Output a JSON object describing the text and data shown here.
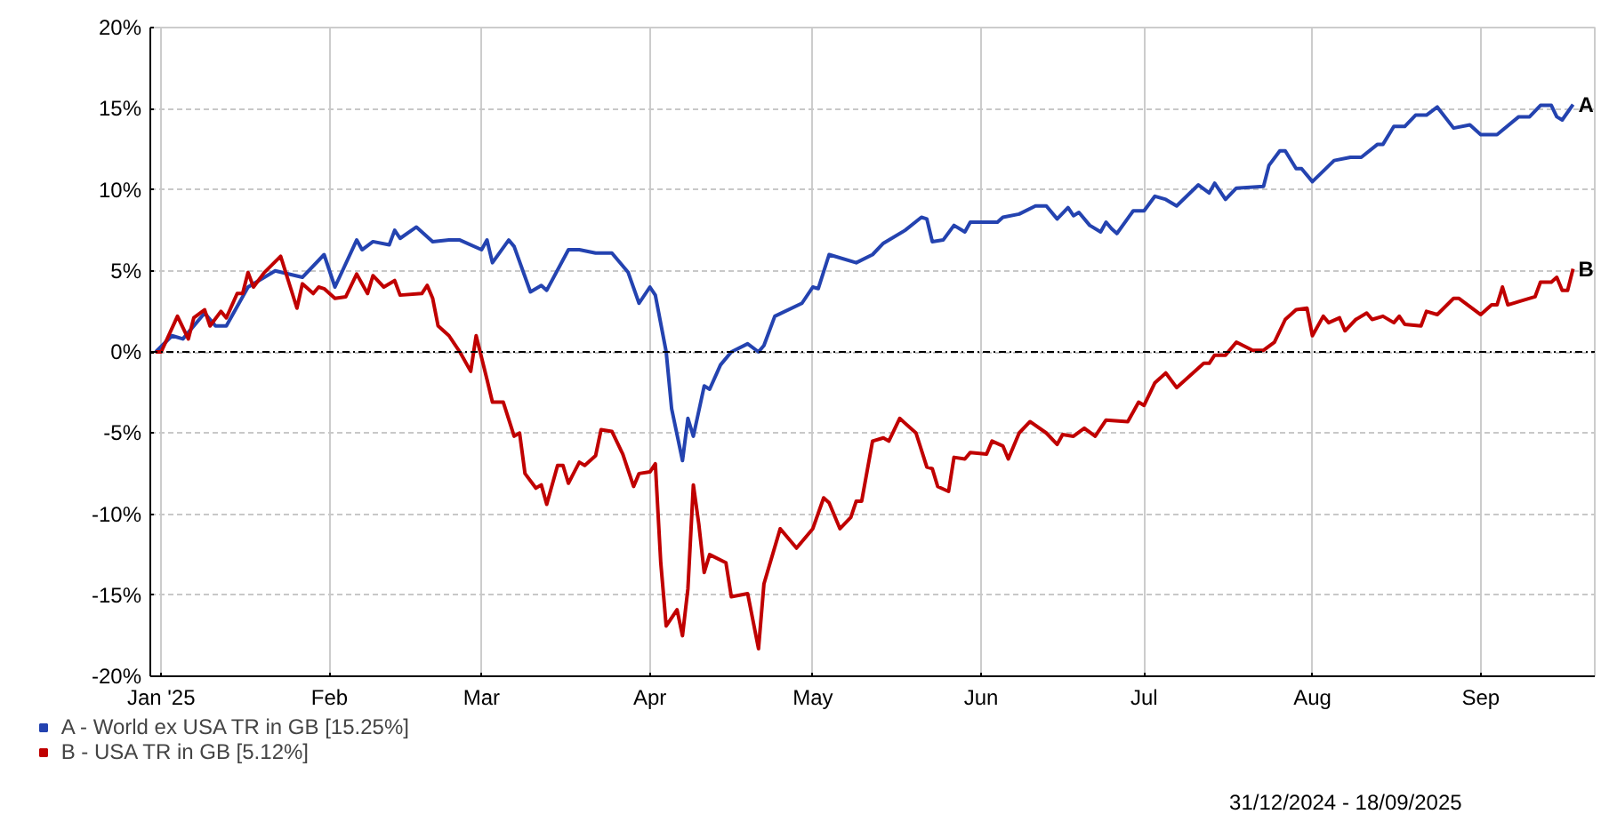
{
  "chart_data": {
    "type": "line",
    "xlim": [
      "2024-12-30",
      "2025-09-22"
    ],
    "xticks": [
      {
        "value": "2025-01-01",
        "label": "Jan '25"
      },
      {
        "value": "2025-02-01",
        "label": "Feb"
      },
      {
        "value": "2025-03-01",
        "label": "Mar"
      },
      {
        "value": "2025-04-01",
        "label": "Apr"
      },
      {
        "value": "2025-05-01",
        "label": "May"
      },
      {
        "value": "2025-06-01",
        "label": "Jun"
      },
      {
        "value": "2025-07-01",
        "label": "Jul"
      },
      {
        "value": "2025-08-01",
        "label": "Aug"
      },
      {
        "value": "2025-09-01",
        "label": "Sep"
      }
    ],
    "ylim": [
      -20,
      20
    ],
    "yticks": [
      {
        "value": -20,
        "label": "-20%"
      },
      {
        "value": -15,
        "label": "-15%"
      },
      {
        "value": -10,
        "label": "-10%"
      },
      {
        "value": -5,
        "label": "-5%"
      },
      {
        "value": 0,
        "label": "0%"
      },
      {
        "value": 5,
        "label": "5%"
      },
      {
        "value": 10,
        "label": "10%"
      },
      {
        "value": 15,
        "label": "15%"
      },
      {
        "value": 20,
        "label": "20%"
      }
    ],
    "grid": true,
    "legend": "bottom",
    "marker": "none",
    "line_style": "solid",
    "ref_lines": [
      {
        "axis": "y",
        "value": 0,
        "label": null,
        "color": "#000000",
        "line_style": "dashed"
      }
    ],
    "annotations": [
      {
        "text": "A",
        "x": "2025-09-18",
        "y": 15.25
      },
      {
        "text": "B",
        "x": "2025-09-18",
        "y": 5.12
      },
      "31/12/2024 - 18/09/2025"
    ],
    "series": [
      {
        "name": "A - World ex USA TR in GB [15.25%]",
        "color": "#2443b0",
        "x": [
          "2024-12-31",
          "2025-01-03",
          "2025-01-05",
          "2025-01-09",
          "2025-01-11",
          "2025-01-13",
          "2025-01-17",
          "2025-01-22",
          "2025-01-27",
          "2025-01-31",
          "2025-02-02",
          "2025-02-06",
          "2025-02-07",
          "2025-02-09",
          "2025-02-12",
          "2025-02-13",
          "2025-02-14",
          "2025-02-17",
          "2025-02-20",
          "2025-02-23",
          "2025-02-25",
          "2025-03-01",
          "2025-03-02",
          "2025-03-03",
          "2025-03-06",
          "2025-03-07",
          "2025-03-10",
          "2025-03-12",
          "2025-03-13",
          "2025-03-17",
          "2025-03-19",
          "2025-03-22",
          "2025-03-25",
          "2025-03-28",
          "2025-03-30",
          "2025-04-01",
          "2025-04-02",
          "2025-04-04",
          "2025-04-05",
          "2025-04-07",
          "2025-04-08",
          "2025-04-09",
          "2025-04-11",
          "2025-04-12",
          "2025-04-14",
          "2025-04-16",
          "2025-04-19",
          "2025-04-21",
          "2025-04-22",
          "2025-04-24",
          "2025-04-29",
          "2025-05-01",
          "2025-05-02",
          "2025-05-04",
          "2025-05-09",
          "2025-05-12",
          "2025-05-14",
          "2025-05-18",
          "2025-05-21",
          "2025-05-22",
          "2025-05-23",
          "2025-05-25",
          "2025-05-27",
          "2025-05-29",
          "2025-05-30",
          "2025-06-04",
          "2025-06-05",
          "2025-06-08",
          "2025-06-11",
          "2025-06-13",
          "2025-06-15",
          "2025-06-17",
          "2025-06-18",
          "2025-06-19",
          "2025-06-21",
          "2025-06-23",
          "2025-06-24",
          "2025-06-25",
          "2025-06-26",
          "2025-06-29",
          "2025-07-01",
          "2025-07-03",
          "2025-07-05",
          "2025-07-07",
          "2025-07-11",
          "2025-07-13",
          "2025-07-14",
          "2025-07-16",
          "2025-07-18",
          "2025-07-23",
          "2025-07-24",
          "2025-07-26",
          "2025-07-27",
          "2025-07-29",
          "2025-07-30",
          "2025-08-01",
          "2025-08-05",
          "2025-08-08",
          "2025-08-10",
          "2025-08-13",
          "2025-08-14",
          "2025-08-16",
          "2025-08-18",
          "2025-08-20",
          "2025-08-22",
          "2025-08-24",
          "2025-08-27",
          "2025-08-30",
          "2025-09-01",
          "2025-09-04",
          "2025-09-08",
          "2025-09-10",
          "2025-09-12",
          "2025-09-14",
          "2025-09-15",
          "2025-09-16",
          "2025-09-18"
        ],
        "values": [
          0,
          1.0,
          0.8,
          2.4,
          1.6,
          1.6,
          4.0,
          5.0,
          4.6,
          6.0,
          4.0,
          6.9,
          6.3,
          6.8,
          6.6,
          7.5,
          7.0,
          7.7,
          6.8,
          6.9,
          6.9,
          6.3,
          6.9,
          5.5,
          6.9,
          6.5,
          3.7,
          4.1,
          3.8,
          6.3,
          6.3,
          6.1,
          6.1,
          4.9,
          3.0,
          4.0,
          3.5,
          0,
          -3.5,
          -6.7,
          -4.1,
          -5.2,
          -2.1,
          -2.3,
          -0.8,
          0,
          0.5,
          0,
          0.4,
          2.2,
          3.0,
          4.0,
          3.9,
          6.0,
          5.5,
          6.0,
          6.7,
          7.5,
          8.3,
          8.2,
          6.8,
          6.9,
          7.8,
          7.4,
          8.0,
          8.0,
          8.3,
          8.5,
          9.0,
          9.0,
          8.2,
          8.9,
          8.4,
          8.6,
          7.8,
          7.4,
          8.0,
          7.6,
          7.3,
          8.7,
          8.7,
          9.6,
          9.4,
          9.0,
          10.3,
          9.8,
          10.4,
          9.4,
          10.1,
          10.2,
          11.5,
          12.4,
          12.4,
          11.3,
          11.3,
          10.5,
          11.8,
          12.0,
          12.0,
          12.8,
          12.8,
          13.9,
          13.9,
          14.6,
          14.6,
          15.1,
          13.8,
          14.0,
          13.4,
          13.4,
          14.5,
          14.5,
          15.2,
          15.2,
          14.5,
          14.3,
          15.25
        ]
      },
      {
        "name": "B - USA TR in GB [5.12%]",
        "color": "#c00000",
        "x": [
          "2024-12-31",
          "2025-01-01",
          "2025-01-04",
          "2025-01-06",
          "2025-01-07",
          "2025-01-09",
          "2025-01-10",
          "2025-01-12",
          "2025-01-13",
          "2025-01-15",
          "2025-01-16",
          "2025-01-17",
          "2025-01-18",
          "2025-01-20",
          "2025-01-23",
          "2025-01-26",
          "2025-01-27",
          "2025-01-29",
          "2025-01-30",
          "2025-01-31",
          "2025-02-02",
          "2025-02-04",
          "2025-02-06",
          "2025-02-08",
          "2025-02-09",
          "2025-02-11",
          "2025-02-13",
          "2025-02-14",
          "2025-02-18",
          "2025-02-19",
          "2025-02-20",
          "2025-02-21",
          "2025-02-23",
          "2025-02-25",
          "2025-02-27",
          "2025-02-28",
          "2025-03-02",
          "2025-03-03",
          "2025-03-05",
          "2025-03-07",
          "2025-03-08",
          "2025-03-09",
          "2025-03-11",
          "2025-03-12",
          "2025-03-13",
          "2025-03-15",
          "2025-03-16",
          "2025-03-17",
          "2025-03-19",
          "2025-03-20",
          "2025-03-22",
          "2025-03-23",
          "2025-03-25",
          "2025-03-27",
          "2025-03-29",
          "2025-03-30",
          "2025-04-01",
          "2025-04-02",
          "2025-04-03",
          "2025-04-04",
          "2025-04-06",
          "2025-04-07",
          "2025-04-08",
          "2025-04-09",
          "2025-04-10",
          "2025-04-11",
          "2025-04-12",
          "2025-04-15",
          "2025-04-16",
          "2025-04-19",
          "2025-04-21",
          "2025-04-22",
          "2025-04-25",
          "2025-04-28",
          "2025-05-01",
          "2025-05-03",
          "2025-05-04",
          "2025-05-06",
          "2025-05-08",
          "2025-05-09",
          "2025-05-10",
          "2025-05-12",
          "2025-05-14",
          "2025-05-15",
          "2025-05-17",
          "2025-05-20",
          "2025-05-22",
          "2025-05-23",
          "2025-05-24",
          "2025-05-26",
          "2025-05-27",
          "2025-05-29",
          "2025-05-30",
          "2025-06-02",
          "2025-06-03",
          "2025-06-05",
          "2025-06-06",
          "2025-06-08",
          "2025-06-10",
          "2025-06-13",
          "2025-06-15",
          "2025-06-16",
          "2025-06-18",
          "2025-06-20",
          "2025-06-22",
          "2025-06-24",
          "2025-06-28",
          "2025-06-30",
          "2025-07-01",
          "2025-07-03",
          "2025-07-05",
          "2025-07-07",
          "2025-07-10",
          "2025-07-12",
          "2025-07-13",
          "2025-07-14",
          "2025-07-16",
          "2025-07-18",
          "2025-07-21",
          "2025-07-23",
          "2025-07-25",
          "2025-07-27",
          "2025-07-29",
          "2025-07-31",
          "2025-08-01",
          "2025-08-03",
          "2025-08-04",
          "2025-08-06",
          "2025-08-07",
          "2025-08-09",
          "2025-08-11",
          "2025-08-12",
          "2025-08-14",
          "2025-08-16",
          "2025-08-17",
          "2025-08-18",
          "2025-08-21",
          "2025-08-22",
          "2025-08-24",
          "2025-08-27",
          "2025-08-28",
          "2025-09-01",
          "2025-09-03",
          "2025-09-04",
          "2025-09-05",
          "2025-09-06",
          "2025-09-08",
          "2025-09-11",
          "2025-09-12",
          "2025-09-14",
          "2025-09-15",
          "2025-09-16",
          "2025-09-17",
          "2025-09-18"
        ],
        "values": [
          0,
          0,
          2.2,
          0.8,
          2.1,
          2.6,
          1.6,
          2.5,
          2.1,
          3.6,
          3.6,
          4.9,
          4.0,
          4.9,
          5.9,
          2.7,
          4.2,
          3.6,
          4.0,
          3.9,
          3.3,
          3.4,
          4.8,
          3.6,
          4.7,
          4.0,
          4.4,
          3.5,
          3.6,
          4.1,
          3.3,
          1.6,
          1.0,
          0.0,
          -1.2,
          1.0,
          -1.7,
          -3.1,
          -3.1,
          -5.2,
          -5.0,
          -7.5,
          -8.4,
          -8.2,
          -9.4,
          -7.0,
          -7.0,
          -8.1,
          -6.8,
          -7.0,
          -6.4,
          -4.8,
          -4.9,
          -6.3,
          -8.3,
          -7.5,
          -7.4,
          -6.9,
          -13.0,
          -16.9,
          -15.9,
          -17.5,
          -14.6,
          -8.2,
          -10.6,
          -13.6,
          -12.5,
          -13.0,
          -15.1,
          -14.9,
          -18.3,
          -14.3,
          -10.9,
          -12.1,
          -10.9,
          -9.0,
          -9.3,
          -10.9,
          -10.2,
          -9.2,
          -9.2,
          -5.5,
          -5.3,
          -5.5,
          -4.1,
          -5.0,
          -7.1,
          -7.2,
          -8.3,
          -8.6,
          -6.5,
          -6.6,
          -6.2,
          -6.3,
          -5.5,
          -5.8,
          -6.6,
          -5.0,
          -4.3,
          -5.0,
          -5.7,
          -5.1,
          -5.2,
          -4.7,
          -5.2,
          -4.2,
          -4.3,
          -3.1,
          -3.3,
          -1.9,
          -1.3,
          -2.2,
          -1.3,
          -0.7,
          -0.7,
          -0.2,
          -0.2,
          0.6,
          0.1,
          0.1,
          0.6,
          2.0,
          2.6,
          2.7,
          1.0,
          2.2,
          1.8,
          2.1,
          1.3,
          2.0,
          2.4,
          2.0,
          2.2,
          1.8,
          2.2,
          1.7,
          1.6,
          2.5,
          2.3,
          3.3,
          3.3,
          2.3,
          2.9,
          2.9,
          4.0,
          2.9,
          3.1,
          3.4,
          4.3,
          4.3,
          4.6,
          3.8,
          3.8,
          5.12
        ]
      }
    ]
  }
}
